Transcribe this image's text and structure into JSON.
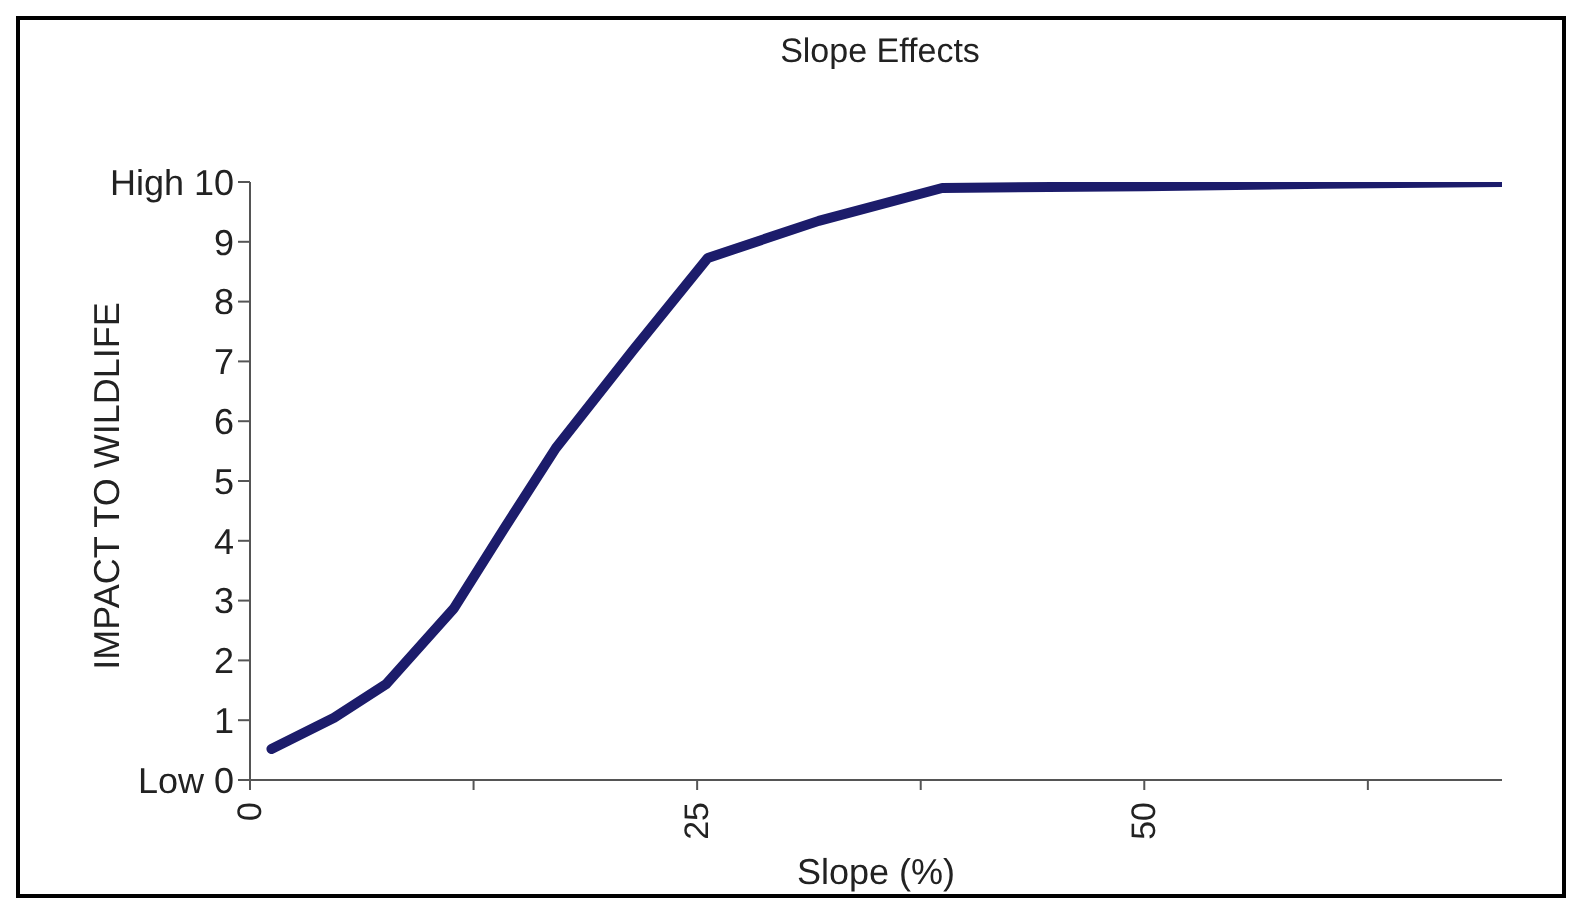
{
  "chart_data": {
    "type": "line",
    "title": "Slope Effects",
    "xlabel": "Slope (%)",
    "ylabel": "IMPACT TO WILDLIFE",
    "x": [
      1.2,
      4.7,
      7.6,
      11.4,
      14.2,
      17.1,
      21.4,
      25.6,
      31.8,
      38.7,
      50,
      60,
      70
    ],
    "series": [
      {
        "color": "#1c1c6b",
        "values": [
          0.52,
          1.04,
          1.6,
          2.87,
          4.2,
          5.55,
          7.18,
          8.73,
          9.35,
          9.9,
          9.93,
          9.97,
          10
        ]
      }
    ],
    "xlim": [
      0,
      70
    ],
    "xticks": [
      0,
      {
        "value": 12.5,
        "label": null
      },
      25,
      {
        "value": 37.5,
        "label": null
      },
      50,
      {
        "value": 62.5,
        "label": null
      }
    ],
    "ylim": [
      0,
      10
    ],
    "yticks": [
      {
        "value": 0,
        "label": "Low   0"
      },
      1,
      2,
      3,
      4,
      5,
      6,
      7,
      8,
      9,
      {
        "value": 10,
        "label": "High 10"
      }
    ],
    "grid": false,
    "legend": false,
    "marker": "none",
    "line_style": "solid"
  }
}
